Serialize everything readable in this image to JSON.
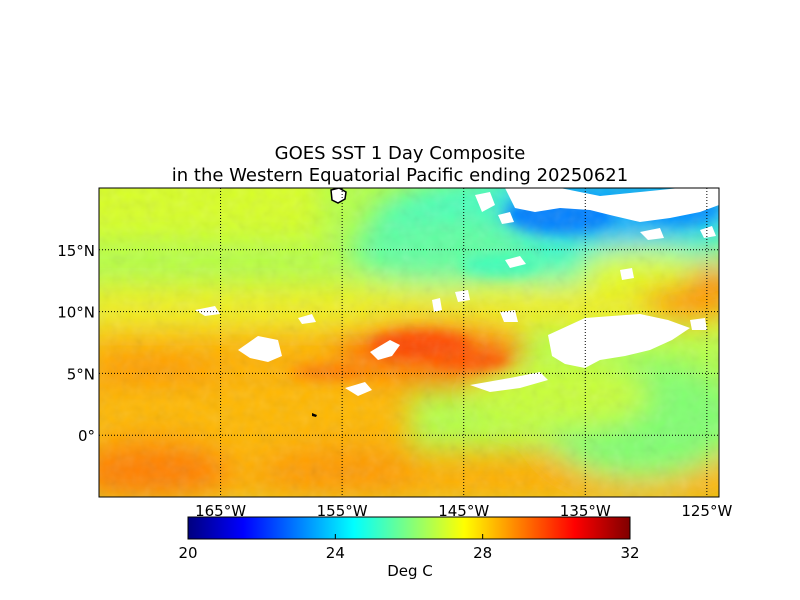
{
  "title": {
    "line1": "GOES SST 1 Day Composite",
    "line2": "in the Western Equatorial Pacific ending 20250621"
  },
  "map": {
    "lon_range": [
      -175,
      -124
    ],
    "lat_range": [
      -5,
      20
    ],
    "lat_ticks": [
      {
        "value": 15,
        "label": "15°N"
      },
      {
        "value": 10,
        "label": "10°N"
      },
      {
        "value": 5,
        "label": "5°N"
      },
      {
        "value": 0,
        "label": "0°"
      }
    ],
    "lon_ticks": [
      {
        "value": -165,
        "label": "165°W"
      },
      {
        "value": -155,
        "label": "155°W"
      },
      {
        "value": -145,
        "label": "145°W"
      },
      {
        "value": -135,
        "label": "135°W"
      },
      {
        "value": -125,
        "label": "125°W"
      }
    ],
    "gridlines": "dotted",
    "land_color": "#ffffff",
    "missing_data_color": "#ffffff"
  },
  "colorbar": {
    "label": "Deg C",
    "range": [
      20,
      32
    ],
    "ticks": [
      {
        "value": 20,
        "label": "20"
      },
      {
        "value": 24,
        "label": "24"
      },
      {
        "value": 28,
        "label": "28"
      },
      {
        "value": 32,
        "label": "32"
      }
    ],
    "colormap": "jet",
    "stops": [
      "#00007f",
      "#0000ff",
      "#007fff",
      "#00ffff",
      "#7fff7f",
      "#ffff00",
      "#ff7f00",
      "#ff0000",
      "#7f0000"
    ]
  }
}
